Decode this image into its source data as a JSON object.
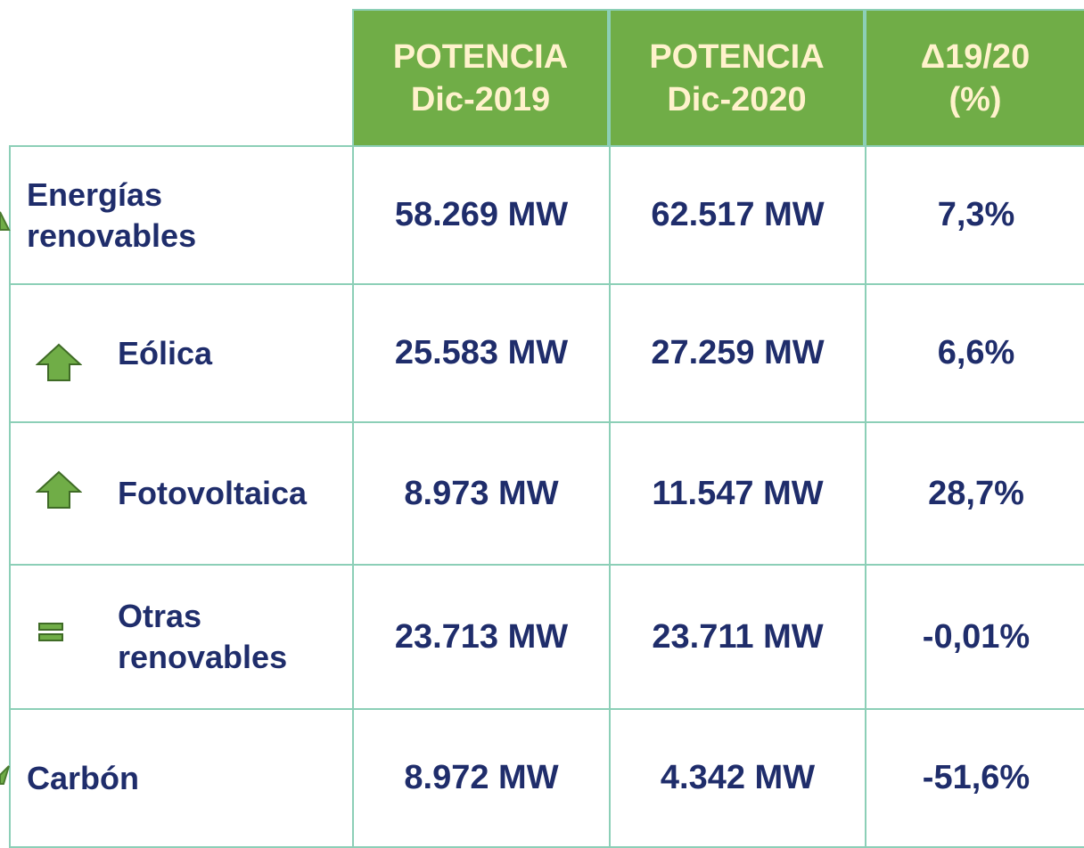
{
  "table": {
    "header": [
      [
        "POTENCIA",
        "Dic-2019"
      ],
      [
        "POTENCIA",
        "Dic-2020"
      ],
      [
        "Δ19/20",
        "(%)"
      ]
    ],
    "rows": [
      {
        "label": [
          "Energías",
          "renovables"
        ],
        "cells": [
          "58.269 MW",
          "62.517 MW",
          "7,3%"
        ]
      },
      {
        "label": [
          "Eólica"
        ],
        "cells": [
          "25.583 MW",
          "27.259 MW",
          "6,6%"
        ]
      },
      {
        "label": [
          "Fotovoltaica"
        ],
        "cells": [
          "8.973 MW",
          "11.547 MW",
          "28,7%"
        ]
      },
      {
        "label": [
          "Otras",
          "renovables"
        ],
        "cells": [
          "23.713 MW",
          "23.711 MW",
          "-0,01%"
        ]
      },
      {
        "label": [
          "Carbón"
        ],
        "cells": [
          "8.972 MW",
          "4.342 MW",
          "-51,6%"
        ]
      }
    ]
  }
}
